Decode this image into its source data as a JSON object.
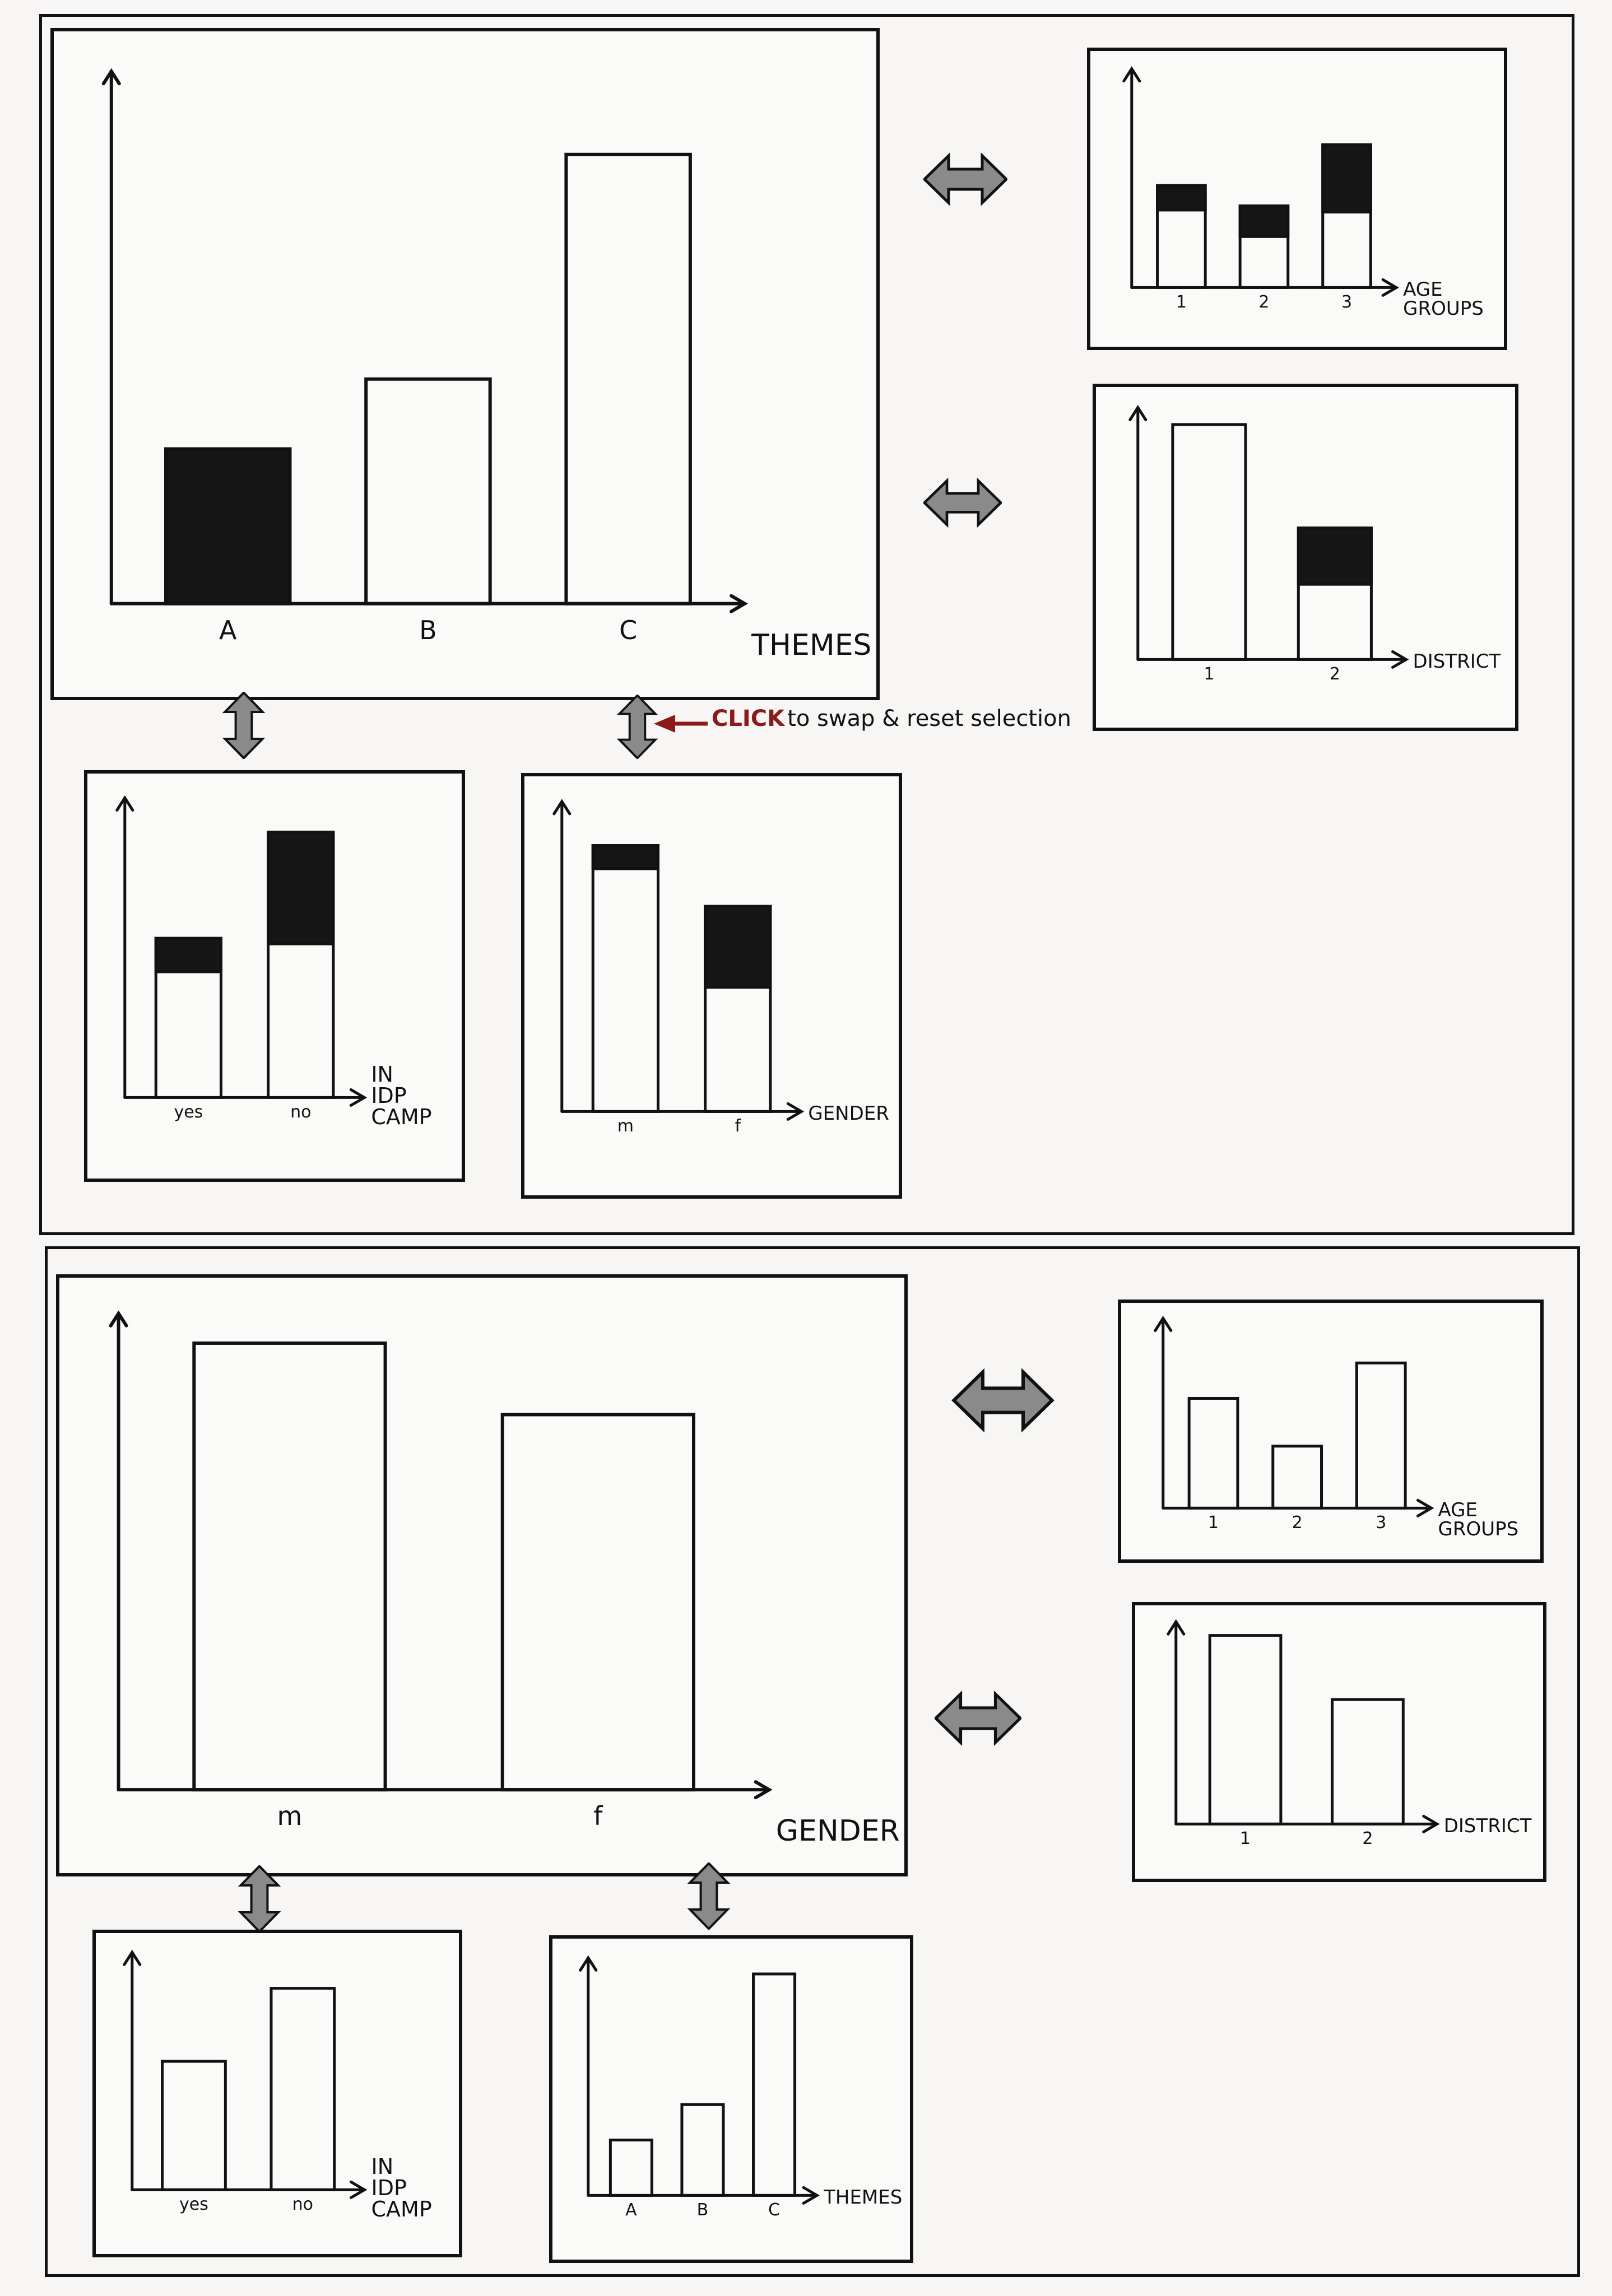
{
  "sketch_top": {
    "main": {
      "xlabel": "THEMES",
      "categories": [
        "A",
        "B",
        "C"
      ],
      "values": [
        31,
        45,
        90
      ],
      "highlight": [
        1,
        0,
        0
      ]
    },
    "side1": {
      "xlabel": [
        "AGE",
        "GROUPS"
      ],
      "categories": [
        "1",
        "2",
        "3"
      ],
      "total": [
        50,
        40,
        70
      ],
      "selected": [
        12,
        15,
        33
      ]
    },
    "side2": {
      "xlabel": [
        "DISTRICT"
      ],
      "categories": [
        "1",
        "2"
      ],
      "total": [
        100,
        56
      ],
      "selected": [
        0,
        24
      ]
    },
    "bottom1": {
      "xlabel": [
        "IN",
        "IDP",
        "CAMP"
      ],
      "categories": [
        "yes",
        "no"
      ],
      "total": [
        57,
        95
      ],
      "selected": [
        12,
        40
      ]
    },
    "bottom2": {
      "xlabel": [
        "GENDER"
      ],
      "categories": [
        "m",
        "f"
      ],
      "total": [
        92,
        71
      ],
      "selected": [
        8,
        28
      ]
    },
    "note": {
      "click": "CLICK",
      "text": "to swap & reset selection"
    }
  },
  "sketch_bottom": {
    "main": {
      "xlabel": "GENDER",
      "categories": [
        "m",
        "f"
      ],
      "values": [
        100,
        84
      ],
      "highlight": [
        0,
        0
      ]
    },
    "side1": {
      "xlabel": [
        "AGE",
        "GROUPS"
      ],
      "categories": [
        "1",
        "2",
        "3"
      ],
      "total": [
        62,
        35,
        82
      ],
      "selected": [
        0,
        0,
        0
      ]
    },
    "side2": {
      "xlabel": [
        "DISTRICT"
      ],
      "categories": [
        "1",
        "2"
      ],
      "total": [
        100,
        66
      ],
      "selected": [
        0,
        0
      ]
    },
    "bottom1": {
      "xlabel": [
        "IN",
        "IDP",
        "CAMP"
      ],
      "categories": [
        "yes",
        "no"
      ],
      "total": [
        58,
        91
      ],
      "selected": [
        0,
        0
      ]
    },
    "bottom2": {
      "xlabel": [
        "THEMES"
      ],
      "categories": [
        "A",
        "B",
        "C"
      ],
      "total": [
        25,
        41,
        100
      ],
      "selected": [
        0,
        0,
        0
      ]
    }
  },
  "colors": {
    "ink": "#111111",
    "fill": "#161616",
    "accent": "#8b1a1a",
    "arrow": "#8a8a8a"
  },
  "icons": {
    "horizontal": "double-arrow-horizontal-icon",
    "vertical": "double-arrow-vertical-icon",
    "pointer": "red-arrow-icon"
  }
}
